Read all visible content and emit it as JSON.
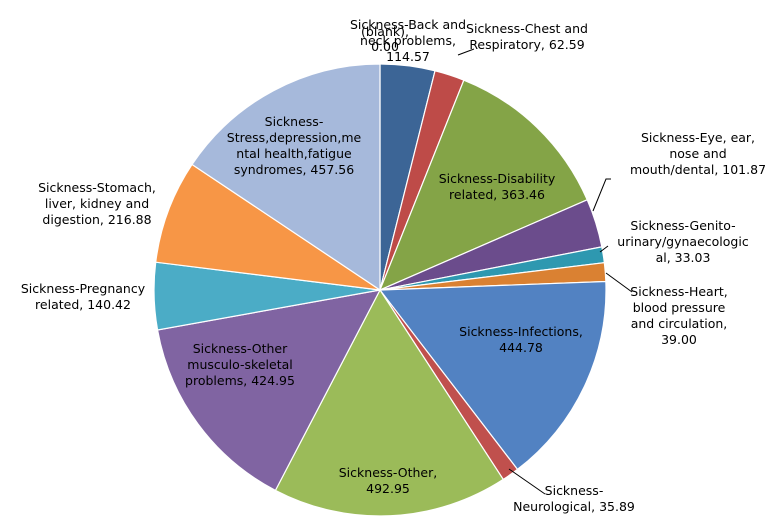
{
  "chart_data": {
    "type": "pie",
    "title": "",
    "series": [
      {
        "values": [
          {
            "label": "(blank)",
            "value": 0.0,
            "display": "0.00",
            "color": "#4F81BD"
          },
          {
            "label": "Sickness-Back and neck problems",
            "value": 114.57,
            "display": "114.57",
            "color": "#3C6596"
          },
          {
            "label": "Sickness-Chest and Respiratory",
            "value": 62.59,
            "display": "62.59",
            "color": "#BE4B48"
          },
          {
            "label": "Sickness-Disability related",
            "value": 363.46,
            "display": "363.46",
            "color": "#84A447"
          },
          {
            "label": "Sickness-Eye, ear, nose and mouth/dental",
            "value": 101.87,
            "display": "101.87",
            "color": "#6B4C8C"
          },
          {
            "label": "Sickness-Genito-urinary/gynaecological",
            "value": 33.03,
            "display": "33.03",
            "color": "#2E98B0"
          },
          {
            "label": "Sickness-Heart, blood pressure and circulation",
            "value": 39.0,
            "display": "39.00",
            "color": "#DA8132"
          },
          {
            "label": "Sickness-Infections",
            "value": 444.78,
            "display": "444.78",
            "color": "#5282C2"
          },
          {
            "label": "Sickness-Neurological",
            "value": 35.89,
            "display": "35.89",
            "color": "#C0504D"
          },
          {
            "label": "Sickness-Other",
            "value": 492.95,
            "display": "492.95",
            "color": "#9BBB59"
          },
          {
            "label": "Sickness-Other musculo-skeletal problems",
            "value": 424.95,
            "display": "424.95",
            "color": "#8064A2"
          },
          {
            "label": "Sickness-Pregnancy related",
            "value": 140.42,
            "display": "140.42",
            "color": "#4BACC6"
          },
          {
            "label": "Sickness-Stomach, liver, kidney and digestion",
            "value": 216.88,
            "display": "216.88",
            "color": "#F79646"
          },
          {
            "label": "Sickness-Stress,depression,mental health,fatigue syndromes",
            "value": 457.56,
            "display": "457.56",
            "color": "#A6B9DB"
          }
        ]
      }
    ],
    "label_text": [
      [
        "Sickness-Back and",
        "neck problems,",
        "114.57"
      ],
      [
        "Sickness-Chest and",
        "Respiratory, 62.59"
      ],
      [
        "Sickness-Disability",
        "related, 363.46"
      ],
      [
        "Sickness-Eye, ear,",
        "nose and",
        "mouth/dental, 101.87"
      ],
      [
        "Sickness-Genito-",
        "urinary/gynaecologic",
        "al, 33.03"
      ],
      [
        "Sickness-Heart,",
        "blood pressure",
        "and circulation,",
        "39.00"
      ],
      [
        "Sickness-Infections,",
        "444.78"
      ],
      [
        "Sickness-",
        "Neurological, 35.89"
      ],
      [
        "Sickness-Other,",
        "492.95"
      ],
      [
        "Sickness-Other",
        "musculo-skeletal",
        "problems, 424.95"
      ],
      [
        "Sickness-Pregnancy",
        "related, 140.42"
      ],
      [
        "Sickness-Stomach,",
        "liver, kidney and",
        "digestion, 216.88"
      ],
      [
        "Sickness-",
        "Stress,depression,me",
        "ntal health,fatigue",
        "syndromes, 457.56"
      ]
    ],
    "blank_label_text": [
      "(blank),",
      "0.00"
    ],
    "legend": "none"
  }
}
